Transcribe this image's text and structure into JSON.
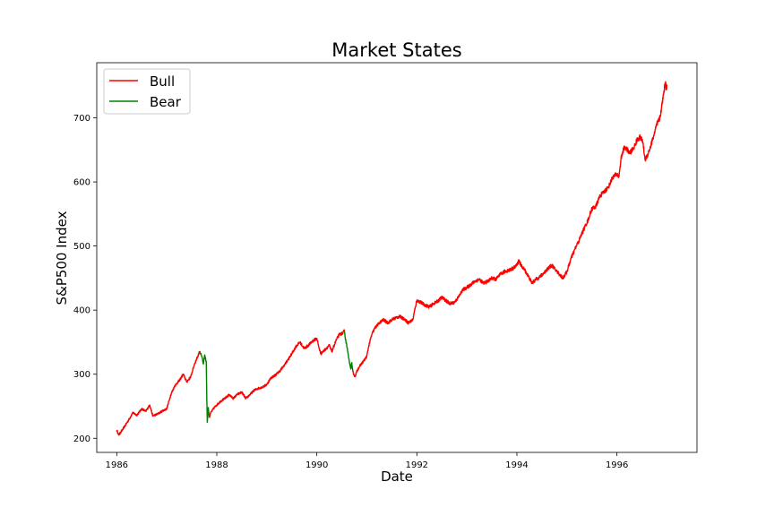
{
  "chart_data": {
    "type": "line",
    "title": "Market States",
    "xlabel": "Date",
    "ylabel": "S&P500 Index",
    "xlim": [
      1985.6,
      1997.6
    ],
    "ylim": [
      178,
      786
    ],
    "xticks": [
      1986,
      1988,
      1990,
      1992,
      1994,
      1996
    ],
    "xtick_labels": [
      "1986",
      "1988",
      "1990",
      "1992",
      "1994",
      "1996"
    ],
    "yticks": [
      200,
      300,
      400,
      500,
      600,
      700
    ],
    "ytick_labels": [
      "200",
      "300",
      "400",
      "500",
      "600",
      "700"
    ],
    "grid": false,
    "legend": "upper-left",
    "colors": {
      "Bull": "#ff0000",
      "Bear": "#008000"
    },
    "series": [
      {
        "name": "Bull",
        "segments": [
          [
            [
              1986.0,
              213
            ],
            [
              1986.04,
              205
            ],
            [
              1986.12,
              214
            ],
            [
              1986.25,
              230
            ],
            [
              1986.32,
              240
            ],
            [
              1986.4,
              236
            ],
            [
              1986.5,
              246
            ],
            [
              1986.58,
              242
            ],
            [
              1986.66,
              252
            ],
            [
              1986.72,
              235
            ],
            [
              1986.82,
              238
            ],
            [
              1986.92,
              243
            ],
            [
              1987.0,
              246
            ],
            [
              1987.08,
              268
            ],
            [
              1987.16,
              282
            ],
            [
              1987.25,
              290
            ],
            [
              1987.33,
              300
            ],
            [
              1987.4,
              288
            ],
            [
              1987.48,
              296
            ],
            [
              1987.55,
              315
            ],
            [
              1987.62,
              328
            ],
            [
              1987.66,
              336
            ]
          ],
          [
            [
              1987.85,
              232
            ],
            [
              1987.88,
              240
            ],
            [
              1987.95,
              248
            ],
            [
              1988.0,
              252
            ],
            [
              1988.08,
              258
            ],
            [
              1988.16,
              262
            ],
            [
              1988.25,
              268
            ],
            [
              1988.33,
              262
            ],
            [
              1988.4,
              268
            ],
            [
              1988.5,
              272
            ],
            [
              1988.58,
              262
            ],
            [
              1988.66,
              268
            ],
            [
              1988.75,
              275
            ],
            [
              1988.83,
              278
            ],
            [
              1988.92,
              280
            ],
            [
              1989.0,
              284
            ],
            [
              1989.08,
              294
            ],
            [
              1989.16,
              298
            ],
            [
              1989.25,
              304
            ],
            [
              1989.33,
              312
            ],
            [
              1989.42,
              322
            ],
            [
              1989.5,
              332
            ],
            [
              1989.58,
              343
            ],
            [
              1989.66,
              350
            ],
            [
              1989.75,
              340
            ],
            [
              1989.83,
              345
            ],
            [
              1989.92,
              352
            ],
            [
              1990.0,
              356
            ],
            [
              1990.04,
              342
            ],
            [
              1990.08,
              332
            ],
            [
              1990.16,
              338
            ],
            [
              1990.25,
              345
            ],
            [
              1990.3,
              335
            ],
            [
              1990.38,
              352
            ],
            [
              1990.45,
              362
            ],
            [
              1990.52,
              364
            ],
            [
              1990.55,
              368
            ]
          ],
          [
            [
              1990.72,
              304
            ],
            [
              1990.76,
              296
            ],
            [
              1990.82,
              308
            ],
            [
              1990.88,
              315
            ],
            [
              1990.95,
              322
            ],
            [
              1991.0,
              328
            ],
            [
              1991.04,
              345
            ],
            [
              1991.1,
              362
            ],
            [
              1991.16,
              372
            ],
            [
              1991.25,
              380
            ],
            [
              1991.33,
              385
            ],
            [
              1991.42,
              380
            ],
            [
              1991.5,
              385
            ],
            [
              1991.58,
              388
            ],
            [
              1991.66,
              390
            ],
            [
              1991.75,
              386
            ],
            [
              1991.83,
              380
            ],
            [
              1991.92,
              385
            ],
            [
              1991.97,
              405
            ],
            [
              1992.0,
              415
            ],
            [
              1992.08,
              412
            ],
            [
              1992.16,
              408
            ],
            [
              1992.25,
              405
            ],
            [
              1992.33,
              410
            ],
            [
              1992.42,
              414
            ],
            [
              1992.5,
              420
            ],
            [
              1992.58,
              415
            ],
            [
              1992.66,
              410
            ],
            [
              1992.75,
              412
            ],
            [
              1992.83,
              420
            ],
            [
              1992.92,
              432
            ],
            [
              1993.0,
              435
            ],
            [
              1993.08,
              440
            ],
            [
              1993.16,
              445
            ],
            [
              1993.25,
              448
            ],
            [
              1993.33,
              442
            ],
            [
              1993.42,
              445
            ],
            [
              1993.5,
              450
            ],
            [
              1993.58,
              448
            ],
            [
              1993.66,
              455
            ],
            [
              1993.75,
              460
            ],
            [
              1993.83,
              462
            ],
            [
              1993.92,
              465
            ],
            [
              1994.0,
              470
            ],
            [
              1994.04,
              478
            ],
            [
              1994.08,
              470
            ],
            [
              1994.16,
              462
            ],
            [
              1994.25,
              450
            ],
            [
              1994.3,
              442
            ],
            [
              1994.38,
              448
            ],
            [
              1994.46,
              452
            ],
            [
              1994.54,
              458
            ],
            [
              1994.62,
              465
            ],
            [
              1994.7,
              470
            ],
            [
              1994.78,
              462
            ],
            [
              1994.86,
              455
            ],
            [
              1994.92,
              450
            ],
            [
              1995.0,
              460
            ],
            [
              1995.08,
              480
            ],
            [
              1995.16,
              495
            ],
            [
              1995.25,
              510
            ],
            [
              1995.33,
              525
            ],
            [
              1995.42,
              540
            ],
            [
              1995.5,
              558
            ],
            [
              1995.58,
              562
            ],
            [
              1995.66,
              578
            ],
            [
              1995.75,
              585
            ],
            [
              1995.83,
              592
            ],
            [
              1995.92,
              608
            ],
            [
              1996.0,
              612
            ],
            [
              1996.04,
              608
            ],
            [
              1996.08,
              635
            ],
            [
              1996.12,
              648
            ],
            [
              1996.16,
              655
            ],
            [
              1996.25,
              645
            ],
            [
              1996.33,
              652
            ],
            [
              1996.4,
              665
            ],
            [
              1996.46,
              670
            ],
            [
              1996.52,
              662
            ],
            [
              1996.56,
              635
            ],
            [
              1996.6,
              640
            ],
            [
              1996.66,
              652
            ],
            [
              1996.72,
              668
            ],
            [
              1996.8,
              690
            ],
            [
              1996.86,
              700
            ],
            [
              1996.9,
              720
            ],
            [
              1996.94,
              742
            ],
            [
              1996.97,
              755
            ],
            [
              1996.99,
              745
            ],
            [
              1997.0,
              752
            ]
          ]
        ]
      },
      {
        "name": "Bear",
        "segments": [
          [
            [
              1987.66,
              336
            ],
            [
              1987.7,
              328
            ],
            [
              1987.73,
              316
            ],
            [
              1987.76,
              330
            ],
            [
              1987.79,
              318
            ],
            [
              1987.8,
              262
            ],
            [
              1987.81,
              225
            ],
            [
              1987.83,
              248
            ],
            [
              1987.85,
              232
            ]
          ],
          [
            [
              1990.55,
              368
            ],
            [
              1990.58,
              352
            ],
            [
              1990.62,
              335
            ],
            [
              1990.65,
              320
            ],
            [
              1990.68,
              308
            ],
            [
              1990.7,
              318
            ],
            [
              1990.72,
              304
            ]
          ]
        ]
      }
    ]
  }
}
